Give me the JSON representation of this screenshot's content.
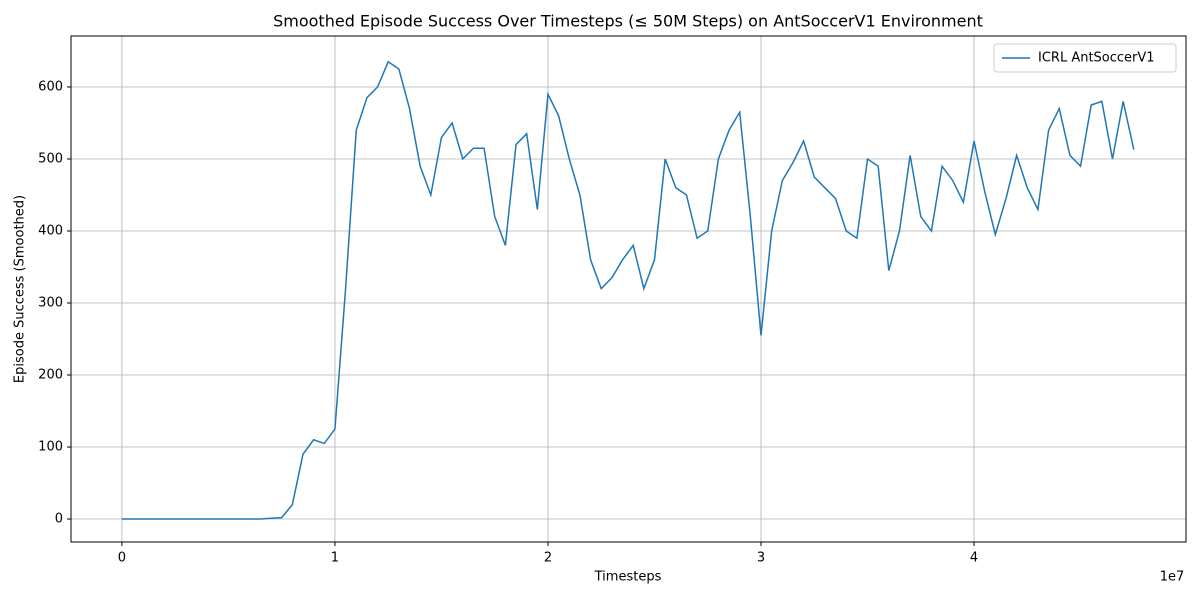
{
  "chart_data": {
    "type": "line",
    "title": "Smoothed Episode Success Over Timesteps (≤ 50M Steps) on AntSoccerV1 Environment",
    "x_label": "Timesteps",
    "y_label": "Episode Success (Smoothed)",
    "x_offset_label": "1e7",
    "x": [
      0,
      0.05,
      0.1,
      0.15,
      0.2,
      0.25,
      0.3,
      0.35,
      0.4,
      0.45,
      0.5,
      0.55,
      0.6,
      0.65,
      0.7,
      0.75,
      0.8,
      0.85,
      0.9,
      0.95,
      1.0,
      1.05,
      1.1,
      1.15,
      1.2,
      1.25,
      1.3,
      1.35,
      1.4,
      1.45,
      1.5,
      1.55,
      1.6,
      1.65,
      1.7,
      1.75,
      1.8,
      1.85,
      1.9,
      1.95,
      2.0,
      2.05,
      2.1,
      2.15,
      2.2,
      2.25,
      2.3,
      2.35,
      2.4,
      2.45,
      2.5,
      2.55,
      2.6,
      2.65,
      2.7,
      2.75,
      2.8,
      2.85,
      2.9,
      2.95,
      3.0,
      3.05,
      3.1,
      3.15,
      3.2,
      3.25,
      3.3,
      3.35,
      3.4,
      3.45,
      3.5,
      3.55,
      3.6,
      3.65,
      3.7,
      3.75,
      3.8,
      3.85,
      3.9,
      3.95,
      4.0,
      4.05,
      4.1,
      4.15,
      4.2,
      4.25,
      4.3,
      4.35,
      4.4,
      4.45,
      4.5,
      4.55,
      4.6,
      4.65,
      4.7,
      4.75
    ],
    "series": [
      {
        "name": "ICRL AntSoccerV1",
        "color": "#1f77b4",
        "values": [
          0,
          0,
          0,
          0,
          0,
          0,
          0,
          0,
          0,
          0,
          0,
          0,
          0,
          0,
          1,
          2,
          20,
          90,
          110,
          105,
          125,
          320,
          540,
          585,
          600,
          635,
          625,
          570,
          490,
          450,
          530,
          550,
          500,
          515,
          515,
          420,
          380,
          520,
          535,
          430,
          590,
          560,
          500,
          450,
          360,
          320,
          335,
          360,
          380,
          320,
          360,
          500,
          460,
          450,
          390,
          400,
          500,
          540,
          565,
          420,
          255,
          400,
          470,
          495,
          525,
          475,
          460,
          445,
          400,
          390,
          500,
          490,
          345,
          400,
          505,
          420,
          400,
          490,
          470,
          440,
          525,
          455,
          395,
          445,
          505,
          460,
          430,
          540,
          570,
          505,
          490,
          575,
          580,
          500,
          580,
          513
        ]
      }
    ],
    "xlim": [
      -0.239,
      4.995
    ],
    "ylim": [
      -31.9,
      670.8
    ],
    "xticks": [
      0,
      1,
      2,
      3,
      4
    ],
    "yticks": [
      0,
      100,
      200,
      300,
      400,
      500,
      600
    ],
    "grid": true,
    "legend": "upper right"
  }
}
